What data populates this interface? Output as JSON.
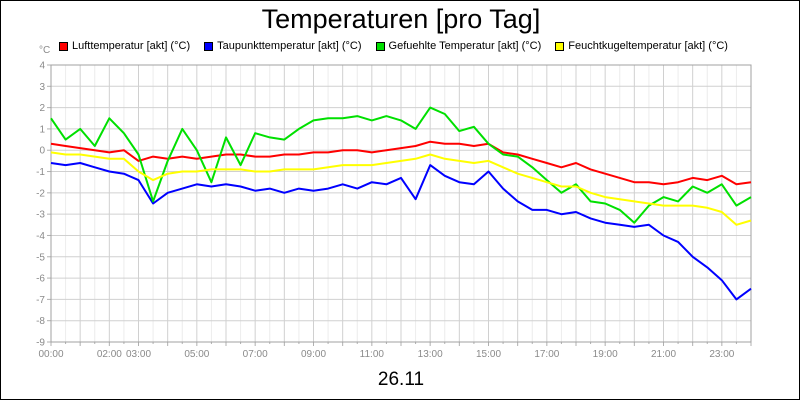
{
  "chart_data": {
    "type": "line",
    "title": "Temperaturen [pro Tag]",
    "xlabel": "26.11",
    "ylabel": "°C",
    "ylim": [
      -9,
      4
    ],
    "xlim": [
      0,
      24
    ],
    "grid": true,
    "legend_position": "top",
    "y_ticks": [
      "4",
      "3",
      "2",
      "1",
      "0",
      "-1",
      "-2",
      "-3",
      "-4",
      "-5",
      "-6",
      "-7",
      "-8",
      "-9"
    ],
    "x_ticks": [
      {
        "label": "00:00",
        "x": 0
      },
      {
        "label": "02:00",
        "x": 2
      },
      {
        "label": "03:00",
        "x": 3
      },
      {
        "label": "05:00",
        "x": 5
      },
      {
        "label": "07:00",
        "x": 7
      },
      {
        "label": "09:00",
        "x": 9
      },
      {
        "label": "11:00",
        "x": 11
      },
      {
        "label": "13:00",
        "x": 13
      },
      {
        "label": "15:00",
        "x": 15
      },
      {
        "label": "17:00",
        "x": 17
      },
      {
        "label": "19:00",
        "x": 19
      },
      {
        "label": "21:00",
        "x": 21
      },
      {
        "label": "23:00",
        "x": 23
      }
    ],
    "x": [
      0,
      0.5,
      1,
      1.5,
      2,
      2.5,
      3,
      3.5,
      4,
      4.5,
      5,
      5.5,
      6,
      6.5,
      7,
      7.5,
      8,
      8.5,
      9,
      9.5,
      10,
      10.5,
      11,
      11.5,
      12,
      12.5,
      13,
      13.5,
      14,
      14.5,
      15,
      15.5,
      16,
      16.5,
      17,
      17.5,
      18,
      18.5,
      19,
      19.5,
      20,
      20.5,
      21,
      21.5,
      22,
      22.5,
      23,
      23.5,
      24
    ],
    "series": [
      {
        "name": "Lufttemperatur [akt] (°C)",
        "color": "#ff0000",
        "values": [
          0.3,
          0.2,
          0.1,
          0.0,
          -0.1,
          0.0,
          -0.5,
          -0.3,
          -0.4,
          -0.3,
          -0.4,
          -0.3,
          -0.2,
          -0.2,
          -0.3,
          -0.3,
          -0.2,
          -0.2,
          -0.1,
          -0.1,
          0.0,
          0.0,
          -0.1,
          0.0,
          0.1,
          0.2,
          0.4,
          0.3,
          0.3,
          0.2,
          0.3,
          -0.1,
          -0.2,
          -0.4,
          -0.6,
          -0.8,
          -0.6,
          -0.9,
          -1.1,
          -1.3,
          -1.5,
          -1.5,
          -1.6,
          -1.5,
          -1.3,
          -1.4,
          -1.2,
          -1.6,
          -1.5
        ]
      },
      {
        "name": "Taupunkttemperatur [akt] (°C)",
        "color": "#0000ff",
        "values": [
          -0.6,
          -0.7,
          -0.6,
          -0.8,
          -1.0,
          -1.1,
          -1.4,
          -2.5,
          -2.0,
          -1.8,
          -1.6,
          -1.7,
          -1.6,
          -1.7,
          -1.9,
          -1.8,
          -2.0,
          -1.8,
          -1.9,
          -1.8,
          -1.6,
          -1.8,
          -1.5,
          -1.6,
          -1.3,
          -2.3,
          -0.7,
          -1.2,
          -1.5,
          -1.6,
          -1.0,
          -1.8,
          -2.4,
          -2.8,
          -2.8,
          -3.0,
          -2.9,
          -3.2,
          -3.4,
          -3.5,
          -3.6,
          -3.5,
          -4.0,
          -4.3,
          -5.0,
          -5.5,
          -6.1,
          -7.0,
          -6.5
        ]
      },
      {
        "name": "Gefuehlte Temperatur [akt] (°C)",
        "color": "#00e000",
        "values": [
          1.5,
          0.5,
          1.0,
          0.2,
          1.5,
          0.8,
          -0.2,
          -2.4,
          -0.5,
          1.0,
          0.0,
          -1.5,
          0.6,
          -0.7,
          0.8,
          0.6,
          0.5,
          1.0,
          1.4,
          1.5,
          1.5,
          1.6,
          1.4,
          1.6,
          1.4,
          1.0,
          2.0,
          1.7,
          0.9,
          1.1,
          0.3,
          -0.2,
          -0.3,
          -0.8,
          -1.4,
          -2.0,
          -1.6,
          -2.4,
          -2.5,
          -2.8,
          -3.4,
          -2.6,
          -2.2,
          -2.4,
          -1.7,
          -2.0,
          -1.6,
          -2.6,
          -2.2
        ]
      },
      {
        "name": "Feuchtkugeltemperatur [akt] (°C)",
        "color": "#ffff00",
        "values": [
          -0.1,
          -0.2,
          -0.2,
          -0.3,
          -0.4,
          -0.4,
          -1.0,
          -1.4,
          -1.1,
          -1.0,
          -1.0,
          -0.9,
          -0.9,
          -0.9,
          -1.0,
          -1.0,
          -0.9,
          -0.9,
          -0.9,
          -0.8,
          -0.7,
          -0.7,
          -0.7,
          -0.6,
          -0.5,
          -0.4,
          -0.2,
          -0.4,
          -0.5,
          -0.6,
          -0.5,
          -0.8,
          -1.1,
          -1.3,
          -1.5,
          -1.7,
          -1.7,
          -2.0,
          -2.2,
          -2.3,
          -2.4,
          -2.5,
          -2.6,
          -2.6,
          -2.6,
          -2.7,
          -2.9,
          -3.5,
          -3.3
        ]
      }
    ]
  }
}
